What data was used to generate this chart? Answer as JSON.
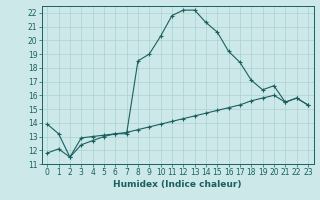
{
  "title": "",
  "xlabel": "Humidex (Indice chaleur)",
  "background_color": "#cce8e8",
  "grid_color": "#aad0d0",
  "line_color": "#1a6060",
  "x_min": -0.5,
  "x_max": 23.5,
  "y_min": 11,
  "y_max": 22.5,
  "curve1_x": [
    0,
    1,
    2,
    3,
    4,
    5,
    6,
    7,
    8,
    9,
    10,
    11,
    12,
    13,
    14,
    15,
    16,
    17,
    18,
    19,
    20,
    21,
    22,
    23
  ],
  "curve1_y": [
    13.9,
    13.2,
    11.5,
    12.9,
    13.0,
    13.1,
    13.2,
    13.2,
    18.5,
    19.0,
    20.3,
    21.8,
    22.2,
    22.2,
    21.3,
    20.6,
    19.2,
    18.4,
    17.1,
    16.4,
    16.7,
    15.5,
    15.8,
    15.3
  ],
  "curve2_x": [
    0,
    1,
    2,
    3,
    4,
    5,
    6,
    7,
    8,
    9,
    10,
    11,
    12,
    13,
    14,
    15,
    16,
    17,
    18,
    19,
    20,
    21,
    22,
    23
  ],
  "curve2_y": [
    11.8,
    12.1,
    11.5,
    12.4,
    12.7,
    13.0,
    13.2,
    13.3,
    13.5,
    13.7,
    13.9,
    14.1,
    14.3,
    14.5,
    14.7,
    14.9,
    15.1,
    15.3,
    15.6,
    15.8,
    16.0,
    15.5,
    15.8,
    15.3
  ],
  "yticks": [
    11,
    12,
    13,
    14,
    15,
    16,
    17,
    18,
    19,
    20,
    21,
    22
  ],
  "xticks": [
    0,
    1,
    2,
    3,
    4,
    5,
    6,
    7,
    8,
    9,
    10,
    11,
    12,
    13,
    14,
    15,
    16,
    17,
    18,
    19,
    20,
    21,
    22,
    23
  ],
  "xtick_labels": [
    "0",
    "1",
    "2",
    "3",
    "4",
    "5",
    "6",
    "7",
    "8",
    "9",
    "10",
    "11",
    "12",
    "13",
    "14",
    "15",
    "16",
    "17",
    "18",
    "19",
    "20",
    "21",
    "22",
    "23"
  ],
  "tick_fontsize": 5.5,
  "xlabel_fontsize": 6.5,
  "marker": "+",
  "linewidth": 0.8,
  "markersize": 3.5,
  "markeredgewidth": 0.8
}
